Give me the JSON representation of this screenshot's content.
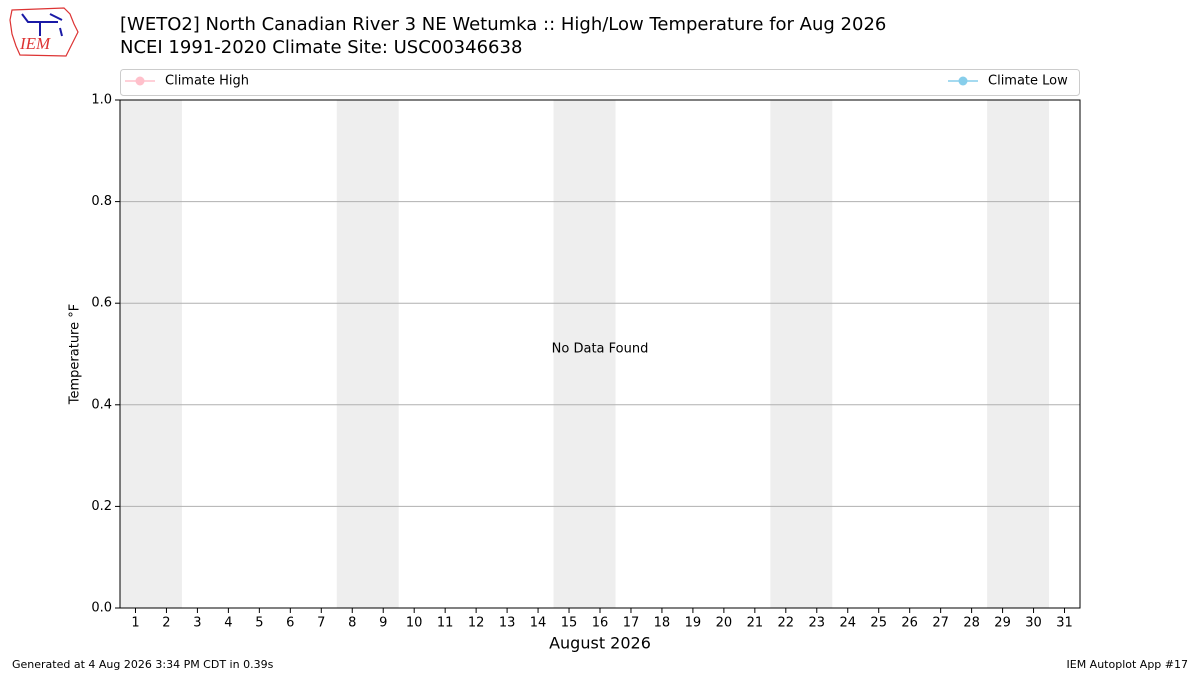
{
  "chart_data": {
    "type": "line",
    "title": "[WETO2] North Canadian River 3 NE Wetumka :: High/Low Temperature for Aug 2026",
    "subtitle": "NCEI 1991-2020 Climate Site: USC00346638",
    "logo": "IEM",
    "x_label": "August 2026",
    "y_label": "Temperature °F",
    "annotation": "No Data Found",
    "footer_left": "Generated at 4 Aug 2026 3:34 PM CDT in 0.39s",
    "footer_right": "IEM Autoplot App #17",
    "x": [],
    "series": [
      {
        "name": "Climate High",
        "color": "#ffc0cb",
        "values": []
      },
      {
        "name": "Climate Low",
        "color": "#87ceeb",
        "values": []
      }
    ],
    "shaded_ranges": [
      [
        0.5,
        2.5
      ],
      [
        7.5,
        9.5
      ],
      [
        14.5,
        16.5
      ],
      [
        21.5,
        23.5
      ],
      [
        28.5,
        30.5
      ]
    ],
    "shade_color": "#eeeeee",
    "xlim": [
      0.5,
      31.5
    ],
    "xticks": [
      1,
      2,
      3,
      4,
      5,
      6,
      7,
      8,
      9,
      10,
      11,
      12,
      13,
      14,
      15,
      16,
      17,
      18,
      19,
      20,
      21,
      22,
      23,
      24,
      25,
      26,
      27,
      28,
      29,
      30,
      31
    ],
    "ylim": [
      0,
      1
    ],
    "yticks": [
      {
        "value": 0,
        "label": "0.0"
      },
      {
        "value": 0.2,
        "label": "0.2"
      },
      {
        "value": 0.4,
        "label": "0.4"
      },
      {
        "value": 0.6,
        "label": "0.6"
      },
      {
        "value": 0.8,
        "label": "0.8"
      },
      {
        "value": 1,
        "label": "1.0"
      }
    ],
    "grid": "y",
    "legend": "top"
  }
}
